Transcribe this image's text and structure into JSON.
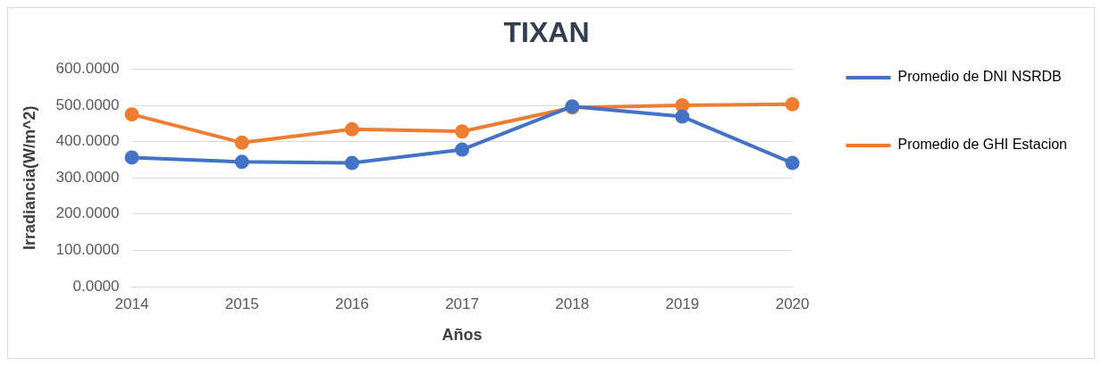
{
  "chart_data": {
    "type": "line",
    "title": "TIXAN",
    "xlabel": "Años",
    "ylabel": "Irradiancia(W/m^2)",
    "categories": [
      "2014",
      "2015",
      "2016",
      "2017",
      "2018",
      "2019",
      "2020"
    ],
    "series": [
      {
        "name": "Promedio de DNI NSRDB",
        "color": "#4472c4",
        "values": [
          356,
          344,
          341,
          378,
          497,
          469,
          341
        ]
      },
      {
        "name": "Promedio de GHI Estacion",
        "color": "#ed7d31",
        "values": [
          475,
          397,
          434,
          428,
          494,
          500,
          503
        ]
      }
    ],
    "ylim": [
      0,
      600
    ],
    "yticks": [
      {
        "value": 0,
        "label": "0.0000"
      },
      {
        "value": 100,
        "label": "100.0000"
      },
      {
        "value": 200,
        "label": "200.0000"
      },
      {
        "value": 300,
        "label": "300.0000"
      },
      {
        "value": 400,
        "label": "400.0000"
      },
      {
        "value": 500,
        "label": "500.0000"
      },
      {
        "value": 600,
        "label": "600.0000"
      }
    ],
    "grid": "y",
    "legend": "right",
    "marker": "circle",
    "line_style": "solid"
  }
}
